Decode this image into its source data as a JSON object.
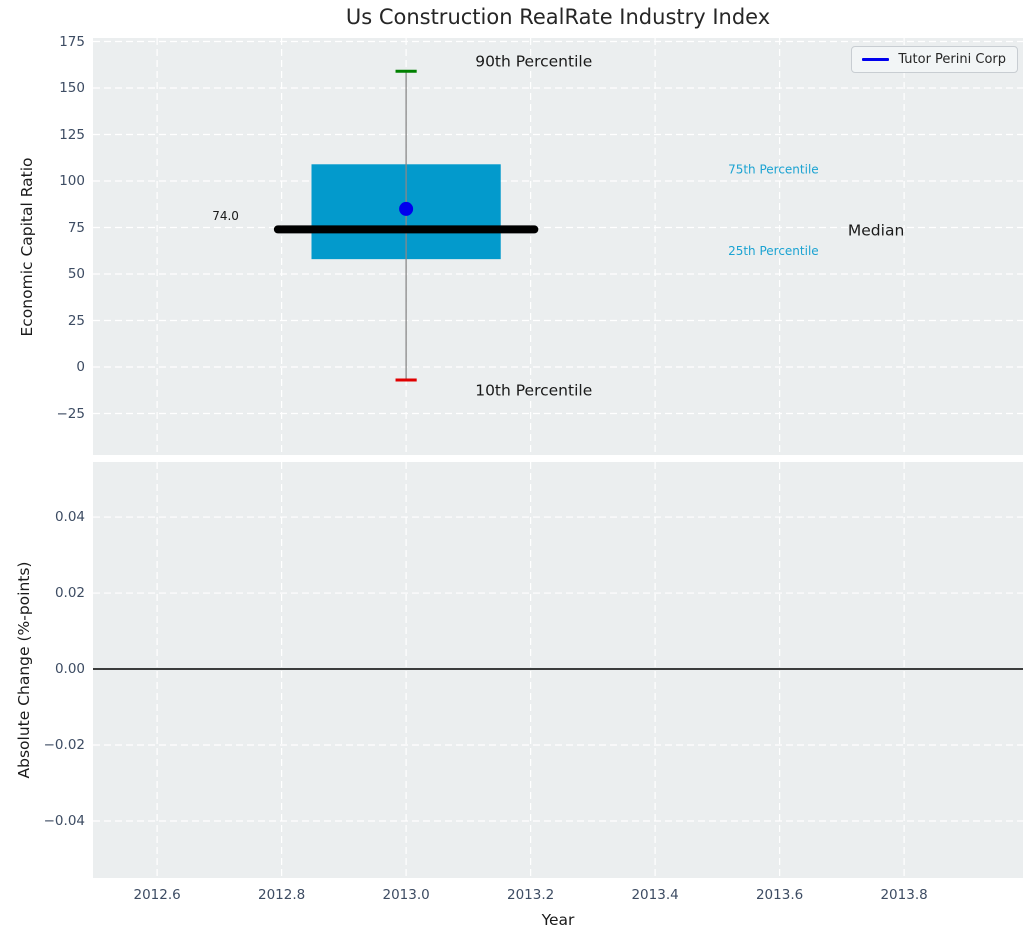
{
  "figure": {
    "title_color": "#262626",
    "background": "#ffffff",
    "axes_background": "#EBEEEF",
    "grid_color": "#ffffff",
    "tick_label_color": "#3D4C63"
  },
  "legend": {
    "label": "Tutor Perini Corp",
    "line_color": "#0000EE",
    "position": "top-right"
  },
  "chart_data": [
    {
      "type": "box",
      "title": "Us Construction RealRate Industry Index",
      "xlabel": "",
      "ylabel": "Economic Capital Ratio",
      "xlim": [
        2012.497,
        2013.991
      ],
      "ylim": [
        -47.3,
        176.9
      ],
      "grid": true,
      "x_tick_values": [
        2012.6,
        2012.8,
        2013.0,
        2013.2,
        2013.4,
        2013.6,
        2013.8
      ],
      "y_ticks": [
        {
          "v": 175,
          "label": "175"
        },
        {
          "v": 150,
          "label": "150"
        },
        {
          "v": 125,
          "label": "125"
        },
        {
          "v": 100,
          "label": "100"
        },
        {
          "v": 75,
          "label": "75"
        },
        {
          "v": 50,
          "label": "50"
        },
        {
          "v": 25,
          "label": "25"
        },
        {
          "v": 0,
          "label": "0"
        },
        {
          "v": -25,
          "label": "−25"
        }
      ],
      "box": {
        "x": 2013.0,
        "p10": -7,
        "p25": 58,
        "median": 74.0,
        "p75": 109,
        "p90": 159,
        "box_half_width": 0.152,
        "median_line_half_width": 0.206,
        "cap_half_width": 0.017,
        "box_color": "#039ACC",
        "median_color": "#000000",
        "whisker_color": "#888888",
        "p90_cap_color": "#008000",
        "p10_cap_color": "#E00000"
      },
      "company_point": {
        "label": "Tutor Perini Corp",
        "x": 2013.0,
        "y": 85,
        "color": "#0000EE",
        "radius": 7
      },
      "annotations": [
        {
          "text": "90th Percentile",
          "x": 2013.205,
          "y": 164,
          "color": "#1A1A1A",
          "font_size": 15.5
        },
        {
          "text": "10th Percentile",
          "x": 2013.205,
          "y": -13,
          "color": "#1A1A1A",
          "font_size": 15.5
        },
        {
          "text": "75th Percentile",
          "x": 2013.59,
          "y": 106,
          "color": "#1BA3D2",
          "font_size": 12
        },
        {
          "text": "25th Percentile",
          "x": 2013.59,
          "y": 62,
          "color": "#1BA3D2",
          "font_size": 12
        },
        {
          "text": "Median",
          "x": 2013.755,
          "y": 73,
          "color": "#1A1A1A",
          "font_size": 15.5
        },
        {
          "text": "74.0",
          "x": 2012.71,
          "y": 81,
          "color": "#1A1A1A",
          "font_size": 12
        }
      ]
    },
    {
      "type": "line",
      "xlabel": "Year",
      "ylabel": "Absolute Change (%-points)",
      "xlim": [
        2012.497,
        2013.991
      ],
      "ylim": [
        -0.055,
        0.0545
      ],
      "grid": true,
      "x_ticks": [
        {
          "v": 2012.6,
          "label": "2012.6"
        },
        {
          "v": 2012.8,
          "label": "2012.8"
        },
        {
          "v": 2013.0,
          "label": "2013.0"
        },
        {
          "v": 2013.2,
          "label": "2013.2"
        },
        {
          "v": 2013.4,
          "label": "2013.4"
        },
        {
          "v": 2013.6,
          "label": "2013.6"
        },
        {
          "v": 2013.8,
          "label": "2013.8"
        }
      ],
      "y_ticks": [
        {
          "v": 0.04,
          "label": "0.04"
        },
        {
          "v": 0.02,
          "label": "0.02"
        },
        {
          "v": 0.0,
          "label": "0.00"
        },
        {
          "v": -0.02,
          "label": "−0.02"
        },
        {
          "v": -0.04,
          "label": "−0.04"
        }
      ],
      "zero_line": {
        "y": 0.0,
        "color": "#000000"
      },
      "series": []
    }
  ]
}
